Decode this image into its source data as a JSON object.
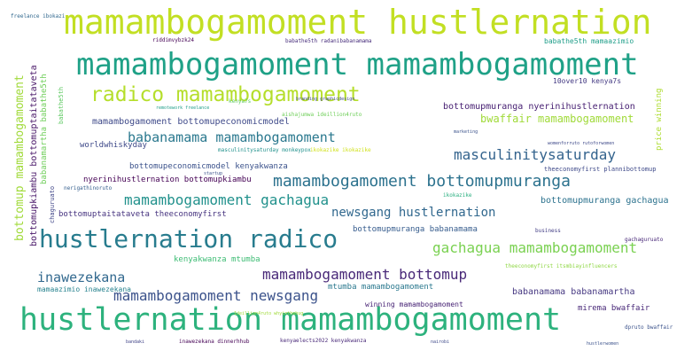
{
  "words": [
    {
      "text": "mamambogamoment hustlernation",
      "color": "#c2df23"
    },
    {
      "text": "mamambogamoment mamambogamoment",
      "color": "#1fa187"
    },
    {
      "text": "radico mamambogamoment",
      "color": "#b5de2b"
    },
    {
      "text": "hustlernation mamambogamoment",
      "color": "#2db27d"
    },
    {
      "text": "hustlernation radico",
      "color": "#287c8e"
    },
    {
      "text": "mamambogamoment bottomupmuranga",
      "color": "#2c728e"
    },
    {
      "text": "babanamama mamambogamoment",
      "color": "#2a788e"
    },
    {
      "text": "masculinitysaturday",
      "color": "#33638d"
    },
    {
      "text": "mamambogamoment gachagua",
      "color": "#21918c"
    },
    {
      "text": "gachagua mamambogamoment",
      "color": "#7ad151"
    },
    {
      "text": "newsgang hustlernation",
      "color": "#31688e"
    },
    {
      "text": "mamambogamoment bottomup",
      "color": "#482878"
    },
    {
      "text": "mamambogamoment newsgang",
      "color": "#3b528b"
    },
    {
      "text": "inawezekana",
      "color": "#31688e"
    },
    {
      "text": "bottomup mamambogamoment",
      "color": "#a0da39"
    },
    {
      "text": "mamambogamoment bottomupeconomicmodel",
      "color": "#3e4989"
    },
    {
      "text": "bottomupmuranga nyerinihustlernation",
      "color": "#482173"
    },
    {
      "text": "bwaffair mamambogamoment",
      "color": "#a0da39"
    },
    {
      "text": "worldwhiskyday",
      "color": "#3e4989"
    },
    {
      "text": "bottomupeconomicmodel kenyakwanza",
      "color": "#3b528b"
    },
    {
      "text": "nyerinihustlernation bottomupkiambu",
      "color": "#440154"
    },
    {
      "text": "bottomuptaitataveta theeconomyfirst",
      "color": "#46337f"
    },
    {
      "text": "bottomupkiambu bottomuptaitataveta",
      "color": "#481668"
    },
    {
      "text": "babanamartha babathe5th",
      "color": "#6ece58"
    },
    {
      "text": "price winning",
      "color": "#addc30"
    },
    {
      "text": "bottomupmuranga gachagua",
      "color": "#2c728e"
    },
    {
      "text": "bottomupmuranga babanamama",
      "color": "#365c8d"
    },
    {
      "text": "kenyakwanza mtumba",
      "color": "#3dbc74"
    },
    {
      "text": "mtumba mamambogamoment",
      "color": "#2a788e"
    },
    {
      "text": "babanamama babanamartha",
      "color": "#453781"
    },
    {
      "text": "mirema bwaffair",
      "color": "#482878"
    },
    {
      "text": "winning mamambogamoment",
      "color": "#482475"
    },
    {
      "text": "mamaazimio inawezekana",
      "color": "#26828e"
    },
    {
      "text": "babathe5th mamaazimio",
      "color": "#1f9e89"
    },
    {
      "text": "10over10 kenya7s",
      "color": "#443a83"
    },
    {
      "text": "kenya7s",
      "color": "#5ec962"
    },
    {
      "text": "riddimvybzk24",
      "color": "#440154"
    },
    {
      "text": "babathe5th radanibabanamama",
      "color": "#472d7b"
    },
    {
      "text": "theeconomyfirst plannibottomup",
      "color": "#3e4989"
    },
    {
      "text": "gachaguruato",
      "color": "#482878"
    },
    {
      "text": "business",
      "color": "#433e85"
    },
    {
      "text": "masculinitysaturday monkeypox",
      "color": "#21918c"
    },
    {
      "text": "ikokazike",
      "color": "#29af7f"
    },
    {
      "text": "dpruto bwaffair",
      "color": "#3b528b"
    },
    {
      "text": "aishajumwa 1deillion4ruto",
      "color": "#6ece58"
    },
    {
      "text": "babathe5th",
      "color": "#5ec962"
    },
    {
      "text": "ikokazike ikokazike",
      "color": "#d0e11c"
    },
    {
      "text": "theeconomyfirst itsmbiayinfluencers",
      "color": "#8fd744"
    },
    {
      "text": "chaguruato",
      "color": "#404688"
    },
    {
      "text": "nerigathinoruto",
      "color": "#355f8d"
    },
    {
      "text": "startup",
      "color": "#3b528b"
    },
    {
      "text": "marketing",
      "color": "#3b528b"
    },
    {
      "text": "womenforruto rutoforwomen",
      "color": "#3e4989"
    },
    {
      "text": "freelance ibokazi",
      "color": "#31688e"
    },
    {
      "text": "branding graphicdesign",
      "color": "#3e4989"
    },
    {
      "text": "remotework freelance",
      "color": "#1f9e89"
    },
    {
      "text": "hustlerwomen",
      "color": "#3b528b"
    },
    {
      "text": "kenyaelects2022 kenyakwanza",
      "color": "#482878"
    },
    {
      "text": "inawezekana dinnerhhub",
      "color": "#440154"
    },
    {
      "text": "nairobi",
      "color": "#3e4989"
    },
    {
      "text": "bandaki",
      "color": "#414487"
    },
    {
      "text": "1deillion4ruto whyinthebug",
      "color": "#a0da39"
    }
  ]
}
